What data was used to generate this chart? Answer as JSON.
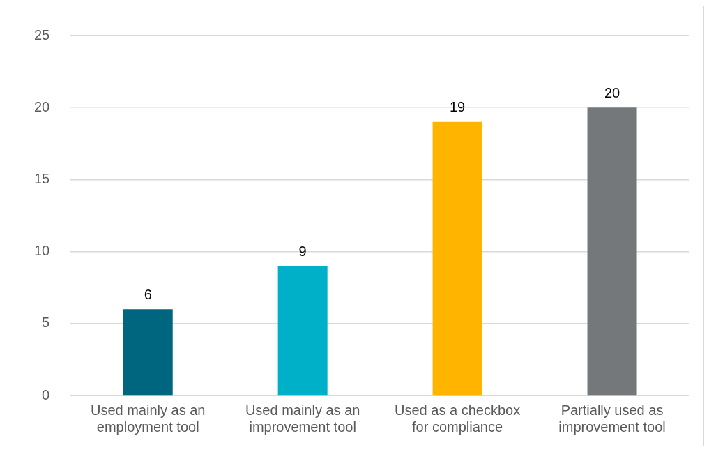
{
  "chart_data": {
    "type": "bar",
    "categories": [
      "Used mainly as an employment tool",
      "Used mainly as an improvement tool",
      "Used as a checkbox for compliance",
      "Partially used as improvement tool"
    ],
    "values": [
      6,
      9,
      19,
      20
    ],
    "colors": [
      "#006680",
      "#00b0c8",
      "#ffb400",
      "#75787b"
    ],
    "ylim": [
      0,
      25
    ],
    "yticks": [
      0,
      5,
      10,
      15,
      20,
      25
    ],
    "grid": "y",
    "data_labels": true,
    "legend": false
  }
}
